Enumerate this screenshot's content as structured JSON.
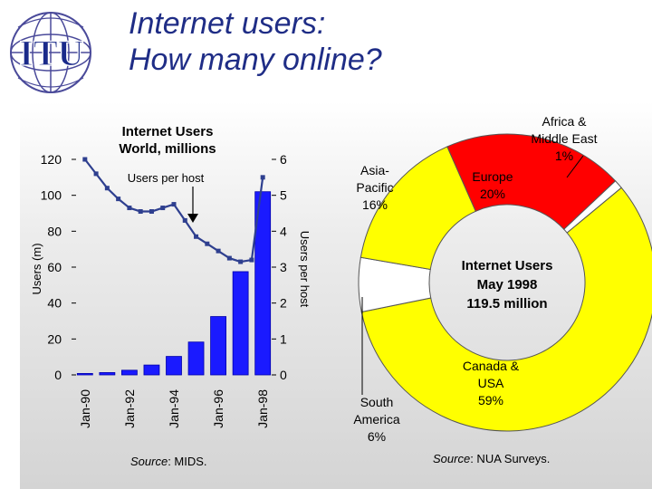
{
  "header": {
    "logo_text": "ITU",
    "title_line1": "Internet users:",
    "title_line2": "How many online?"
  },
  "colors": {
    "title": "#1f2d86",
    "bars": "#1a1aff",
    "line": "#2e3f8f",
    "europe": "#ff0000",
    "canada_usa": "#ffff00",
    "asia_pacific": "#ffff00",
    "africa_me": "#ffffff",
    "south_america": "#ffffff",
    "panel_bg": "#dcdcdc"
  },
  "chart_data": [
    {
      "type": "bar",
      "title": "Internet Users World, millions",
      "title_lines": [
        "Internet Users",
        "World, millions"
      ],
      "ylabel": "Users (m)",
      "y2label": "Users per host",
      "annotation": "Users per host",
      "source_label": "Source",
      "source_value": ": MIDS.",
      "ylim": [
        0,
        120
      ],
      "y2lim": [
        0,
        6
      ],
      "yticks": [
        "0",
        "20",
        "40",
        "60",
        "80",
        "100",
        "120"
      ],
      "y2ticks": [
        "0",
        "1",
        "2",
        "3",
        "4",
        "5",
        "6"
      ],
      "x_tick_labels": [
        "Jan-90",
        "Jan-92",
        "Jan-94",
        "Jan-96",
        "Jan-98"
      ],
      "grid": false,
      "bars": {
        "name": "Users (m)",
        "x": [
          1990,
          1991,
          1992,
          1993,
          1994,
          1995,
          1996,
          1997,
          1998
        ],
        "values": [
          0.8,
          1.3,
          2.6,
          5.5,
          10.3,
          18.3,
          32.5,
          57.5,
          102
        ]
      },
      "line": {
        "name": "Users per host",
        "x": [
          1990,
          1990.5,
          1991,
          1991.5,
          1992,
          1992.5,
          1993,
          1993.5,
          1994,
          1994.5,
          1995,
          1995.5,
          1996,
          1996.5,
          1997,
          1997.5,
          1998
        ],
        "values": [
          6.0,
          5.6,
          5.2,
          4.9,
          4.65,
          4.55,
          4.55,
          4.65,
          4.75,
          4.3,
          3.85,
          3.65,
          3.45,
          3.25,
          3.15,
          3.2,
          5.5
        ]
      }
    },
    {
      "type": "pie",
      "title": "Internet Users",
      "center_lines": [
        "Internet Users",
        "May 1998",
        "119.5 million"
      ],
      "source_label": "Source",
      "source_value": ": NUA Surveys.",
      "slices": [
        {
          "label": "Africa & Middle East",
          "label_lines": [
            "Africa &",
            "Middle East"
          ],
          "value": 1,
          "pct": "1%"
        },
        {
          "label": "Canada & USA",
          "label_lines": [
            "Canada &",
            "USA"
          ],
          "value": 59,
          "pct": "59%"
        },
        {
          "label": "South America",
          "label_lines": [
            "South",
            "America"
          ],
          "value": 6,
          "pct": "6%"
        },
        {
          "label": "Asia-Pacific",
          "label_lines": [
            "Asia-",
            "Pacific"
          ],
          "value": 16,
          "pct": "16%"
        },
        {
          "label": "Europe",
          "label_lines": [
            "Europe"
          ],
          "value": 20,
          "pct": "20%"
        }
      ]
    }
  ]
}
